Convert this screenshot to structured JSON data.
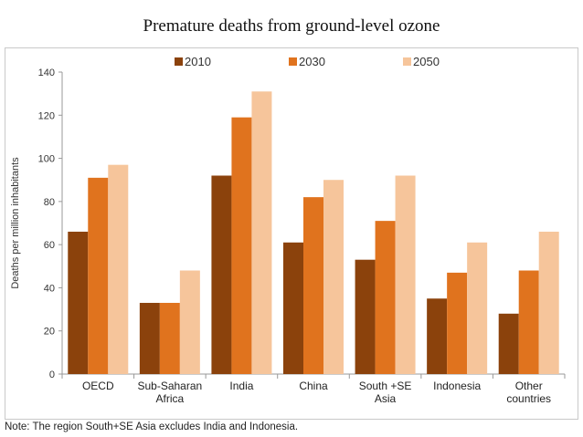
{
  "title": "Premature deaths from ground-level ozone",
  "note": "Note: The region South+SE Asia excludes India and Indonesia.",
  "chart_data": {
    "type": "bar",
    "categories": [
      [
        "OECD"
      ],
      [
        "Sub-Saharan",
        "Africa"
      ],
      [
        "India"
      ],
      [
        "China"
      ],
      [
        "South +SE",
        "Asia"
      ],
      [
        "Indonesia"
      ],
      [
        "Other",
        "countries"
      ]
    ],
    "series": [
      {
        "name": "2010",
        "color": "#8b420c",
        "values": [
          66,
          33,
          92,
          61,
          53,
          35,
          28
        ]
      },
      {
        "name": "2030",
        "color": "#e0731e",
        "values": [
          91,
          33,
          119,
          82,
          71,
          47,
          48
        ]
      },
      {
        "name": "2050",
        "color": "#f6c59b",
        "values": [
          97,
          48,
          131,
          90,
          92,
          61,
          66
        ]
      }
    ],
    "ylabel": "Deaths per million inhabitants",
    "xlabel": "",
    "ylim": [
      0,
      140
    ],
    "yticks": [
      0,
      20,
      40,
      60,
      80,
      100,
      120,
      140
    ],
    "legend_position": "top",
    "grid": false
  }
}
